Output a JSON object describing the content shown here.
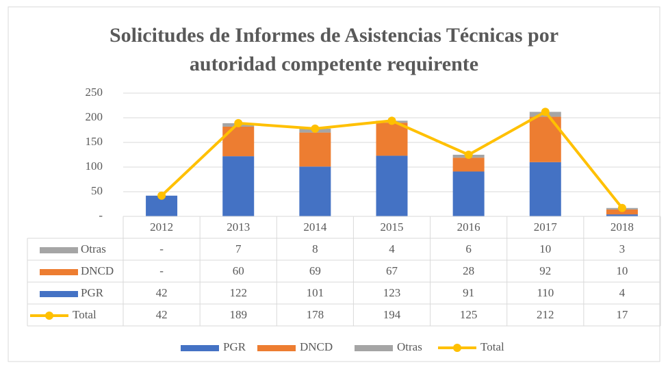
{
  "chart_data": {
    "type": "bar",
    "stacked": true,
    "title": "Solicitudes de Informes de Asistencias Técnicas por autoridad competente requirente",
    "categories": [
      "2012",
      "2013",
      "2014",
      "2015",
      "2016",
      "2017",
      "2018"
    ],
    "series": [
      {
        "name": "PGR",
        "type": "bar",
        "color": "#4472c4",
        "values": [
          42,
          122,
          101,
          123,
          91,
          110,
          4
        ]
      },
      {
        "name": "DNCD",
        "type": "bar",
        "color": "#ed7d31",
        "values": [
          0,
          60,
          69,
          67,
          28,
          92,
          10
        ],
        "value_labels": [
          "-",
          "60",
          "69",
          "67",
          "28",
          "92",
          "10"
        ]
      },
      {
        "name": "Otras",
        "type": "bar",
        "color": "#a5a5a5",
        "values": [
          0,
          7,
          8,
          4,
          6,
          10,
          3
        ],
        "value_labels": [
          "-",
          "7",
          "8",
          "4",
          "6",
          "10",
          "3"
        ]
      },
      {
        "name": "Total",
        "type": "line",
        "color": "#ffc000",
        "values": [
          42,
          189,
          178,
          194,
          125,
          212,
          17
        ]
      }
    ],
    "ylim": [
      0,
      250
    ],
    "yticks": [
      {
        "value": 0,
        "label": "-"
      },
      50,
      100,
      150,
      200,
      250
    ],
    "grid": true,
    "data_table": true,
    "legend": "bottom"
  }
}
